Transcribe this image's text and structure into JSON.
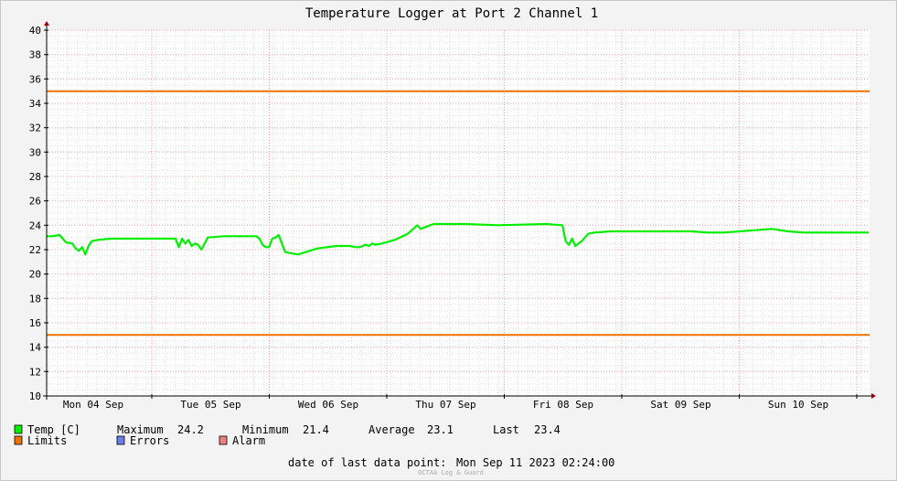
{
  "chart_data": {
    "type": "line",
    "title": "Temperature Logger at Port 2 Channel 1",
    "ylim": [
      10,
      40
    ],
    "y_ticks": [
      10,
      12,
      14,
      16,
      18,
      20,
      22,
      24,
      26,
      28,
      30,
      32,
      34,
      36,
      38,
      40
    ],
    "x_labels": [
      "Mon 04 Sep",
      "Tue 05 Sep",
      "Wed 06 Sep",
      "Thu 07 Sep",
      "Fri 08 Sep",
      "Sat 09 Sep",
      "Sun 10 Sep"
    ],
    "grid": true,
    "limits": {
      "upper": 35,
      "lower": 15,
      "color": "#ee7000"
    },
    "series": [
      {
        "name": "Temp [C]",
        "color": "#00ee00",
        "x_hours": [
          0,
          2,
          4,
          5,
          6,
          8,
          9,
          10,
          11,
          12,
          13,
          14,
          16,
          20,
          24,
          30,
          36,
          40,
          41,
          42,
          43,
          44,
          45,
          46,
          47,
          48,
          50,
          55,
          60,
          65,
          66,
          67,
          68,
          69,
          70,
          71,
          72,
          74,
          78,
          84,
          90,
          94,
          96,
          97,
          98,
          99,
          100,
          101,
          102,
          104,
          108,
          112,
          115,
          116,
          117,
          118,
          119,
          120,
          121,
          122,
          125,
          130,
          140,
          155,
          160,
          161,
          162,
          163,
          164,
          165,
          166,
          167,
          168,
          170,
          175,
          185,
          195,
          200,
          205,
          210,
          215,
          220,
          225,
          230,
          235,
          240,
          245,
          250,
          255
        ],
        "values": [
          23.1,
          23.1,
          23.2,
          22.9,
          22.6,
          22.5,
          22.1,
          21.9,
          22.2,
          21.6,
          22.3,
          22.7,
          22.8,
          22.9,
          22.9,
          22.9,
          22.9,
          22.9,
          22.2,
          22.9,
          22.5,
          22.8,
          22.3,
          22.5,
          22.4,
          22.0,
          23.0,
          23.1,
          23.1,
          23.1,
          22.9,
          22.4,
          22.2,
          22.2,
          22.9,
          23.0,
          23.2,
          21.8,
          21.6,
          22.1,
          22.3,
          22.3,
          22.2,
          22.2,
          22.3,
          22.4,
          22.3,
          22.5,
          22.4,
          22.5,
          22.8,
          23.3,
          24.0,
          23.7,
          23.8,
          23.9,
          24.0,
          24.1,
          24.1,
          24.1,
          24.1,
          24.1,
          24.0,
          24.1,
          24.0,
          22.7,
          22.4,
          22.9,
          22.3,
          22.5,
          22.7,
          23.0,
          23.3,
          23.4,
          23.5,
          23.5,
          23.5,
          23.5,
          23.4,
          23.4,
          23.5,
          23.6,
          23.7,
          23.5,
          23.4,
          23.4,
          23.4,
          23.4,
          23.4
        ]
      }
    ],
    "legend": {
      "temp_label": "Temp [C]",
      "maximum_label": "Maximum",
      "maximum_value": "24.2",
      "minimum_label": "Minimum",
      "minimum_value": "21.4",
      "average_label": "Average",
      "average_value": "23.1",
      "last_label": "Last",
      "last_value": "23.4",
      "limits_label": "Limits",
      "errors_label": "Errors",
      "alarm_label": "Alarm",
      "errors_color": "#6a7fe6",
      "alarm_color": "#ef8080"
    },
    "footer": {
      "last_point_label": "date of last data point:",
      "last_point_value": "Mon Sep 11 2023 02:24:00",
      "watermark": "OCTAA Log & Guard"
    }
  }
}
